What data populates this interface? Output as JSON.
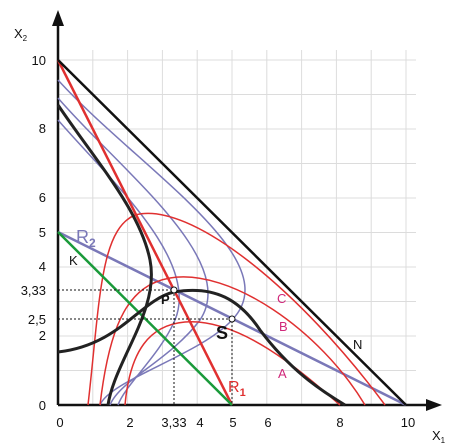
{
  "axes": {
    "x_label": "X",
    "x_sub": "1",
    "y_label": "X",
    "y_sub": "2"
  },
  "x_ticks": [
    "0",
    "2",
    "3,33",
    "4",
    "5",
    "6",
    "8",
    "10"
  ],
  "y_ticks": [
    "0",
    "2",
    "2,5",
    "3,33",
    "4",
    "5",
    "6",
    "8",
    "10"
  ],
  "labels": {
    "N": "N",
    "C": "C",
    "B": "B",
    "A": "A",
    "K": "K",
    "R2": "R",
    "R2_sub": "2",
    "R1": "R",
    "R1_sub": "1",
    "P": "P",
    "S": "S"
  }
}
